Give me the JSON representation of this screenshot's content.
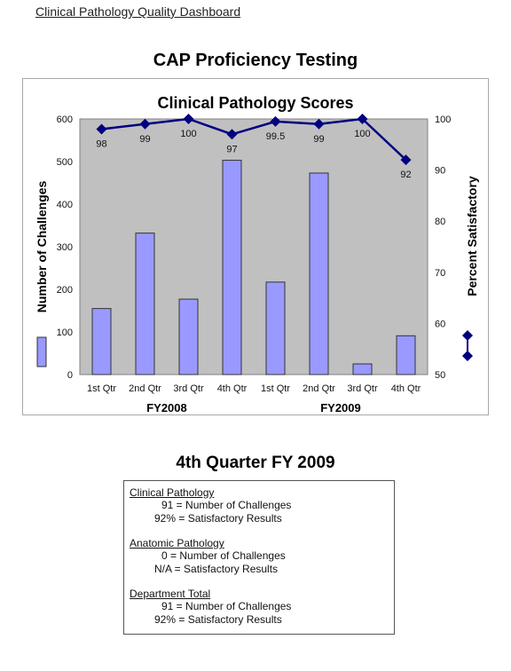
{
  "header": {
    "link_text": "Clinical Pathology Quality Dashboard"
  },
  "page_title": "CAP Proficiency Testing",
  "chart_data": {
    "type": "bar",
    "title": "Clinical Pathology Scores",
    "categories": [
      "1st Qtr",
      "2nd Qtr",
      "3rd Qtr",
      "4th Qtr",
      "1st Qtr",
      "2nd Qtr",
      "3rd Qtr",
      "4th Qtr"
    ],
    "groups": [
      {
        "label": "FY2008",
        "categories": [
          0,
          1,
          2,
          3
        ]
      },
      {
        "label": "FY2009",
        "categories": [
          4,
          5,
          6,
          7
        ]
      }
    ],
    "ylabel": "Number of Challenges",
    "y2label": "Percent Satisfactory",
    "ylim": [
      0,
      600
    ],
    "y2lim": [
      50,
      100
    ],
    "yticks": [
      "0",
      "100",
      "200",
      "300",
      "400",
      "500",
      "600"
    ],
    "y2ticks": [
      "50",
      "60",
      "70",
      "80",
      "90",
      "100"
    ],
    "series": [
      {
        "type": "bar",
        "axis": "left",
        "values": [
          155,
          332,
          177,
          503,
          217,
          473,
          25,
          91
        ],
        "color": "#9999ff"
      },
      {
        "type": "line",
        "axis": "right",
        "values": [
          98,
          99,
          100,
          97,
          99.5,
          99,
          100,
          92
        ],
        "labels": [
          "98",
          "99",
          "100",
          "97",
          "99.5",
          "99",
          "100",
          "92"
        ],
        "color": "#000080"
      }
    ],
    "plot_background": "#c0c0c0",
    "grid": false,
    "legend": "bottom-left (bar swatch) and bottom-right (line marker)"
  },
  "quarter_title": "4th Quarter FY 2009",
  "summary": [
    {
      "title": "Clinical Pathology",
      "count_line": "91 = Number of Challenges",
      "pct_line": "92% = Satisfactory Results"
    },
    {
      "title": "Anatomic Pathology",
      "count_line": "0 = Number of Challenges",
      "pct_line": "N/A = Satisfactory Results"
    },
    {
      "title": "Department Total",
      "count_line": "91 = Number of Challenges",
      "pct_line": "92% = Satisfactory Results"
    }
  ]
}
